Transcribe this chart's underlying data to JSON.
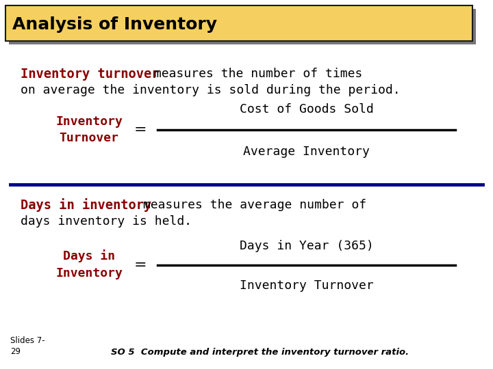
{
  "title": "Analysis of Inventory",
  "title_bg": "#F5D060",
  "title_border": "#1a1a1a",
  "title_shadow": "#777777",
  "background_color": "#FFFFFF",
  "dark_red": "#8B0000",
  "dark_blue": "#00008B",
  "black": "#000000",
  "section1_bold": "Inventory turnover",
  "section1_rest_line1": " measures the number of times",
  "section1_rest_line2": "on average the inventory is sold during the period.",
  "formula1_label_line1": "Inventory",
  "formula1_label_line2": "Turnover",
  "formula1_equals": "=",
  "formula1_numerator": "Cost of Goods Sold",
  "formula1_denominator": "Average Inventory",
  "divider_color": "#00008B",
  "section2_bold": "Days in inventory",
  "section2_rest_line1": " measures the average number of",
  "section2_rest_line2": "days inventory is held.",
  "formula2_label_line1": "Days in",
  "formula2_label_line2": "Inventory",
  "formula2_equals": "=",
  "formula2_numerator": "Days in Year (365)",
  "formula2_denominator": "Inventory Turnover",
  "footer_left_line1": "Slides 7-",
  "footer_left_line2": "29",
  "footer_right": "SO 5  Compute and interpret the inventory turnover ratio."
}
